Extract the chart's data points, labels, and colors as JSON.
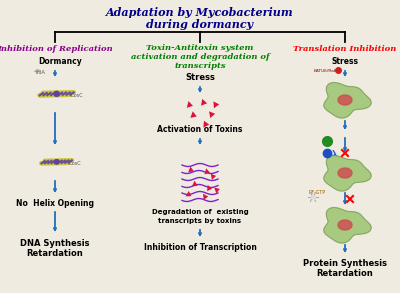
{
  "title_line1": "Adaptation by Mycobacterium",
  "title_line2": "during dormancy",
  "title_color": "#00008B",
  "bg_color": "#f0ebe0",
  "left_header": "Inhibition of Replication",
  "left_header_color": "#8B008B",
  "center_header_line1": "Toxin-Antitoxin system",
  "center_header_line2": "activation and degradation of",
  "center_header_line3": "transcripts",
  "center_header_color": "#008000",
  "right_header": "Translation Inhibition",
  "right_header_color": "#FF0000",
  "arrow_color": "#1E6FBF",
  "toxin_color": "#DC143C",
  "transcript_color": "#6600CC",
  "cell_color": "#90C060",
  "nucleus_color": "#CC5050",
  "dna_yellow": "#C8C840",
  "dna_purple": "#6040A0",
  "dna_blue": "#4080C0"
}
